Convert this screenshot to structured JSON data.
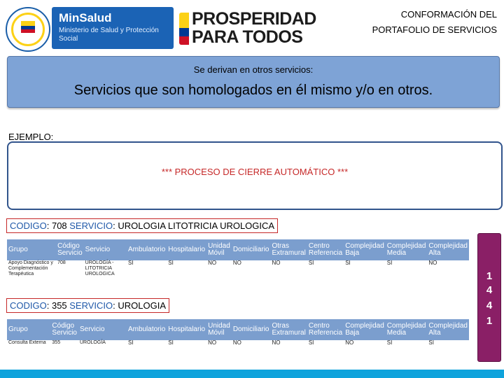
{
  "header": {
    "ministry_name": "MinSalud",
    "ministry_sub": "Ministerio de Salud y Protección Social",
    "slogan_line1": "PROSPERIDAD",
    "slogan_line2": "PARA TODOS",
    "title_line1": "CONFORMACIÓN DEL",
    "title_line2": "PORTAFOLIO DE SERVICIOS"
  },
  "banner": {
    "subtitle": "Se derivan en otros servicios:",
    "title": "Servicios que son homologados en él mismo y/o en otros."
  },
  "ejemplo_label": "EJEMPLO:",
  "cierre_text": "*** PROCESO DE CIERRE AUTOMÁTICO ***",
  "example1": {
    "codigo_label": "CODIGO",
    "codigo_value": ": 708 ",
    "servicio_label": "SERVICIO",
    "servicio_value": ": UROLOGIA LITOTRICIA UROLOGICA"
  },
  "example2": {
    "codigo_label": "CODIGO",
    "codigo_value": ": 355 ",
    "servicio_label": "SERVICIO",
    "servicio_value": ": UROLOGIA"
  },
  "table_headers": [
    "Grupo",
    "Código Servicio",
    "Servicio",
    "Ambulatorio",
    "Hospitalario",
    "Unidad Móvil",
    "Domiciliario",
    "Otras Extramural",
    "Centro Referencia",
    "Complejidad Baja",
    "Complejidad Media",
    "Complejidad Alta"
  ],
  "table1_row": [
    "Apoyo Diagnóstico y Complementación Terapéutica",
    "708",
    "UROLOGÍA - LITOTRICIA UROLOGICA",
    "SI",
    "SI",
    "NO",
    "NO",
    "NO",
    "SI",
    "SI",
    "SI",
    "NO"
  ],
  "table2_row": [
    "Consulta Externa",
    "355",
    "UROLOGÍA",
    "SI",
    "SI",
    "NO",
    "NO",
    "NO",
    "SI",
    "NO",
    "SI",
    "SI"
  ],
  "counter_digits": [
    "1",
    "4",
    "4",
    "1"
  ]
}
